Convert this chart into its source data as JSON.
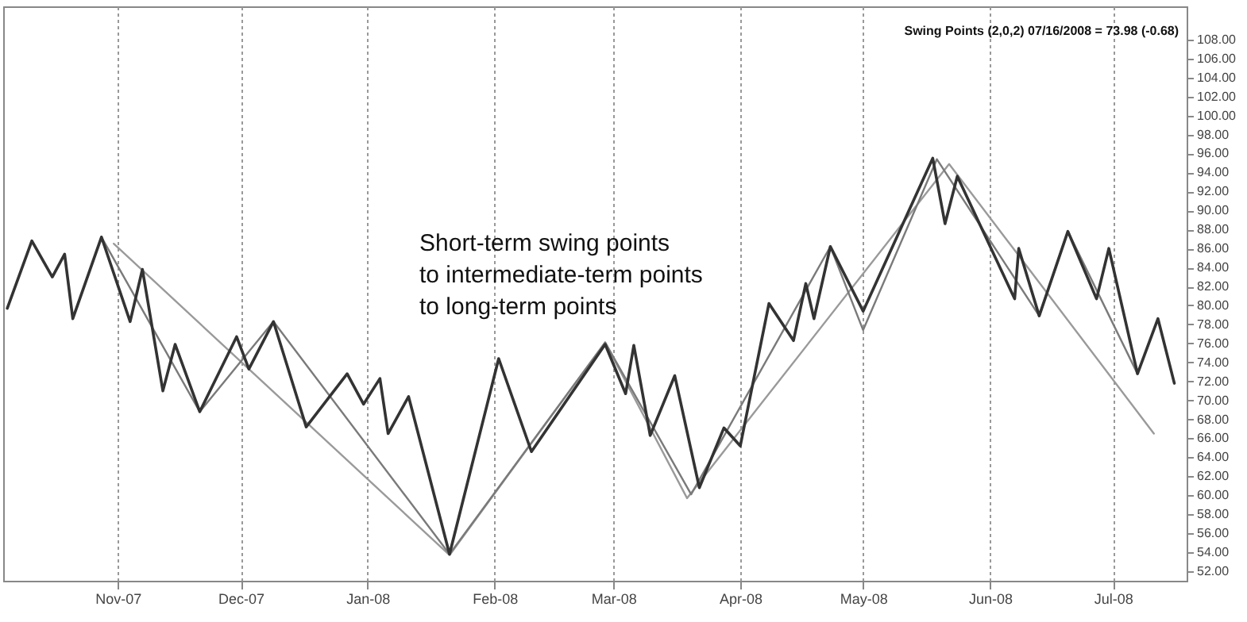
{
  "chart_data": {
    "type": "line",
    "grid": "x",
    "annotations": [
      "Swing Points (2,0,2)  07/16/2008 = 73.98 (-0.68)",
      "Short-term swing points\nto intermediate-term points\nto long-term points"
    ],
    "xlim": [
      "2007-10-04",
      "2008-07-19"
    ],
    "xticks": [
      {
        "value": "2007-11-01",
        "label": "Nov-07"
      },
      {
        "value": "2007-12-01",
        "label": "Dec-07"
      },
      {
        "value": "2008-01-01",
        "label": "Jan-08"
      },
      {
        "value": "2008-02-01",
        "label": "Feb-08"
      },
      {
        "value": "2008-03-01",
        "label": "Mar-08"
      },
      {
        "value": "2008-04-01",
        "label": "Apr-08"
      },
      {
        "value": "2008-05-01",
        "label": "May-08"
      },
      {
        "value": "2008-06-01",
        "label": "Jun-08"
      },
      {
        "value": "2008-07-01",
        "label": "Jul-08"
      }
    ],
    "ylim": [
      51,
      111.5
    ],
    "yticks": [
      {
        "value": 52,
        "label": "52.00"
      },
      {
        "value": 54,
        "label": "54.00"
      },
      {
        "value": 56,
        "label": "56.00"
      },
      {
        "value": 58,
        "label": "58.00"
      },
      {
        "value": 60,
        "label": "60.00"
      },
      {
        "value": 62,
        "label": "62.00"
      },
      {
        "value": 64,
        "label": "64.00"
      },
      {
        "value": 66,
        "label": "66.00"
      },
      {
        "value": 68,
        "label": "68.00"
      },
      {
        "value": 70,
        "label": "70.00"
      },
      {
        "value": 72,
        "label": "72.00"
      },
      {
        "value": 74,
        "label": "74.00"
      },
      {
        "value": 76,
        "label": "76.00"
      },
      {
        "value": 78,
        "label": "78.00"
      },
      {
        "value": 80,
        "label": "80.00"
      },
      {
        "value": 82,
        "label": "82.00"
      },
      {
        "value": 84,
        "label": "84.00"
      },
      {
        "value": 86,
        "label": "86.00"
      },
      {
        "value": 88,
        "label": "88.00"
      },
      {
        "value": 90,
        "label": "90.00"
      },
      {
        "value": 92,
        "label": "92.00"
      },
      {
        "value": 94,
        "label": "94.00"
      },
      {
        "value": 96,
        "label": "96.00"
      },
      {
        "value": 98,
        "label": "98.00"
      },
      {
        "value": 100,
        "label": "100.00"
      },
      {
        "value": 102,
        "label": "102.00"
      },
      {
        "value": 104,
        "label": "104.00"
      },
      {
        "value": 106,
        "label": "106.00"
      },
      {
        "value": 108,
        "label": "108.00"
      }
    ],
    "series": [
      {
        "color": "#9a9a9a",
        "x": [
          "2007-10-31",
          "2008-01-21",
          "2008-02-28",
          "2008-03-19",
          "2008-05-22",
          "2008-07-11"
        ],
        "values": [
          86.5,
          53.7,
          76.1,
          59.7,
          94.9,
          66.5
        ]
      },
      {
        "color": "#7a7a7a",
        "x": [
          "2007-10-28",
          "2007-11-21",
          "2007-12-09",
          "2008-01-21",
          "2008-02-28",
          "2008-03-20",
          "2008-04-23",
          "2008-05-01",
          "2008-05-19",
          "2008-06-13",
          "2008-06-20",
          "2008-07-07"
        ],
        "values": [
          87.2,
          68.8,
          78.3,
          53.8,
          76.1,
          60.1,
          86.2,
          77.4,
          95.4,
          78.9,
          87.8,
          72.8
        ]
      },
      {
        "color": "#333333",
        "x": [
          "2007-10-05",
          "2007-10-11",
          "2007-10-16",
          "2007-10-19",
          "2007-10-21",
          "2007-10-28",
          "2007-11-04",
          "2007-11-07",
          "2007-11-12",
          "2007-11-15",
          "2007-11-21",
          "2007-11-30",
          "2007-12-03",
          "2007-12-09",
          "2007-12-17",
          "2007-12-27",
          "2007-12-31",
          "2008-01-04",
          "2008-01-06",
          "2008-01-11",
          "2008-01-21",
          "2008-02-02",
          "2008-02-10",
          "2008-02-28",
          "2008-03-04",
          "2008-03-06",
          "2008-03-10",
          "2008-03-16",
          "2008-03-22",
          "2008-03-28",
          "2008-04-01",
          "2008-04-08",
          "2008-04-14",
          "2008-04-17",
          "2008-04-19",
          "2008-04-23",
          "2008-05-01",
          "2008-05-18",
          "2008-05-21",
          "2008-05-24",
          "2008-06-07",
          "2008-06-08",
          "2008-06-13",
          "2008-06-20",
          "2008-06-27",
          "2008-06-30",
          "2008-07-07",
          "2008-07-12",
          "2008-07-16"
        ],
        "values": [
          79.7,
          86.8,
          83.0,
          85.4,
          78.6,
          87.2,
          78.3,
          83.8,
          71.0,
          75.9,
          68.8,
          76.7,
          73.3,
          78.3,
          67.2,
          72.8,
          69.6,
          72.3,
          66.5,
          70.4,
          53.8,
          74.4,
          64.6,
          75.9,
          70.7,
          75.8,
          66.3,
          72.6,
          60.8,
          67.1,
          65.2,
          80.2,
          76.3,
          82.3,
          78.6,
          86.2,
          79.4,
          95.5,
          88.6,
          93.6,
          80.7,
          86.0,
          78.9,
          87.8,
          80.7,
          86.0,
          72.8,
          78.6,
          71.8
        ]
      }
    ]
  }
}
